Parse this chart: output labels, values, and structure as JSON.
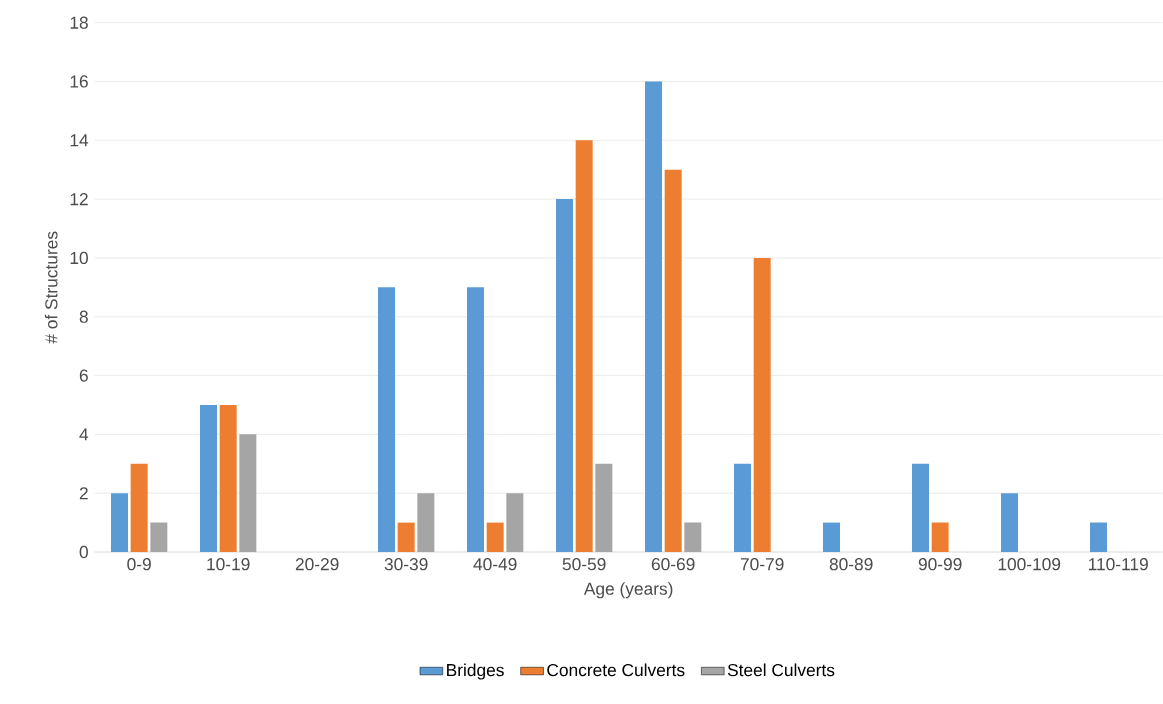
{
  "chart_data": {
    "type": "bar",
    "xlabel": "Age (years)",
    "ylabel": "# of Structures",
    "categories": [
      "0-9",
      "10-19",
      "20-29",
      "30-39",
      "40-49",
      "50-59",
      "60-69",
      "70-79",
      "80-89",
      "90-99",
      "100-109",
      "110-119"
    ],
    "series": [
      {
        "name": "Bridges",
        "color": "#5b9bd5",
        "values": [
          2,
          5,
          null,
          9,
          9,
          12,
          16,
          3,
          1,
          3,
          2,
          1
        ]
      },
      {
        "name": "Concrete Culverts",
        "color": "#ed7d31",
        "values": [
          3,
          5,
          null,
          1,
          1,
          14,
          13,
          10,
          null,
          1,
          null,
          null
        ]
      },
      {
        "name": "Steel Culverts",
        "color": "#a5a5a5",
        "values": [
          1,
          4,
          null,
          2,
          2,
          3,
          1,
          null,
          null,
          null,
          null,
          null
        ]
      }
    ],
    "ylim": [
      0,
      18
    ],
    "yticks": [
      0,
      2,
      4,
      6,
      8,
      10,
      12,
      14,
      16,
      18
    ],
    "grid": "y",
    "legend": "bottom"
  }
}
